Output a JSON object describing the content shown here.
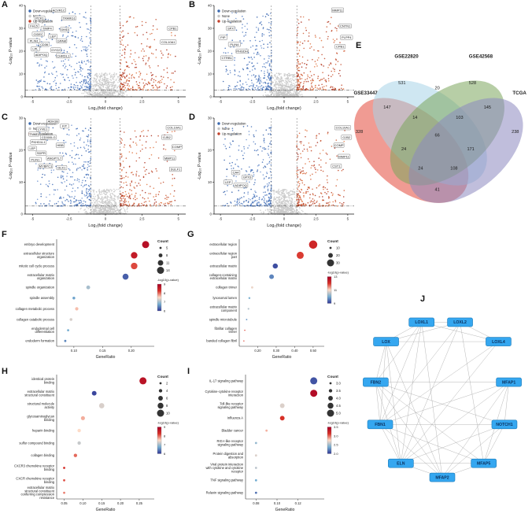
{
  "panels": {
    "a": {
      "letter": "A"
    },
    "b": {
      "letter": "B"
    },
    "c": {
      "letter": "C"
    },
    "d": {
      "letter": "D"
    },
    "e": {
      "letter": "E"
    },
    "f": {
      "letter": "F"
    },
    "g": {
      "letter": "G"
    },
    "h": {
      "letter": "H"
    },
    "i": {
      "letter": "I"
    },
    "j": {
      "letter": "J"
    }
  },
  "axis_labels": {
    "volcano_x": "Log₂(fold change)",
    "volcano_y": "-Log₁₀ P-value",
    "gene_ratio": "GeneRatio"
  },
  "legend_titles": {
    "count": "Count",
    "pvalue": "-log10(p-value)"
  },
  "volcano_legend": [
    "Down-regulation",
    "None",
    "Up-regulation"
  ],
  "colors": {
    "down": "#3a68ae",
    "none": "#c7c7c7",
    "up": "#c2402a",
    "node_fill": "#35a7f0",
    "node_text": "#0b2f5c",
    "edge": "#9a9a9a"
  },
  "chart_data": [
    {
      "panel": "A",
      "type": "scatter",
      "subtype": "volcano",
      "xlabel": "Log₂(fold change)",
      "ylabel": "-Log₁₀ P-value",
      "xlim": [
        -5.5,
        5.5
      ],
      "ylim": [
        0,
        40
      ],
      "xticks": [
        -5,
        -2.5,
        0,
        2.5,
        5
      ],
      "yticks": [
        0,
        10,
        20,
        30,
        40
      ],
      "legend": [
        "Down-regulation",
        "None",
        "Up-regulation"
      ],
      "thresholds": {
        "x": [
          -1,
          1
        ],
        "y": 3
      },
      "genes_down": [
        [
          "ACVR1C",
          -3.2,
          38
        ],
        [
          "PCK1",
          -4.5,
          34.5
        ],
        [
          "TRARG1",
          -2.5,
          34.5
        ],
        [
          "FHL5",
          -4.9,
          31
        ],
        [
          "TIMP4",
          -4.0,
          30
        ],
        [
          "DMD",
          -2.8,
          29.5
        ],
        [
          "CIDEC",
          -4.6,
          27.5
        ],
        [
          "LEP",
          -3.6,
          26.5
        ],
        [
          "PLIN1",
          -4.9,
          24.5
        ],
        [
          "GPAM",
          -3.0,
          24.5
        ],
        [
          "CD36",
          -4.2,
          23
        ],
        [
          "LPL",
          -4.8,
          21
        ],
        [
          "GYG2",
          -3.4,
          20.5
        ],
        [
          "ADIPOQ",
          -4.4,
          18.5
        ],
        [
          "CHRDL1",
          -2.9,
          18
        ]
      ],
      "genes_up": [
        [
          "CPB1",
          4.6,
          30
        ],
        [
          "COL10A1",
          4.3,
          24
        ]
      ]
    },
    {
      "panel": "B",
      "type": "scatter",
      "subtype": "volcano",
      "xlabel": "Log₂(fold change)",
      "ylabel": "-Log₁₀ P-value",
      "xlim": [
        -5.5,
        5.5
      ],
      "ylim": [
        0,
        40
      ],
      "xticks": [
        -5,
        -2.5,
        0,
        2.5,
        5
      ],
      "yticks": [
        0,
        10,
        20,
        30,
        40
      ],
      "legend": [
        "Down-regulation",
        "None",
        "Up-regulation"
      ],
      "thresholds": {
        "x": [
          -1,
          1
        ],
        "y": 3
      },
      "genes_down": [
        [
          "SPX",
          -4.2,
          30
        ],
        [
          "PIP",
          -4.8,
          26
        ],
        [
          "PLIN4",
          -3.9,
          23
        ],
        [
          "PHGDH",
          -3.3,
          20
        ],
        [
          "CTRB1",
          -4.5,
          17
        ]
      ],
      "genes_up": [
        [
          "MMP11",
          4.2,
          38
        ],
        [
          "CNTN1",
          4.8,
          31
        ],
        [
          "PLPP4",
          4.9,
          26
        ],
        [
          "CPB1",
          4.4,
          22
        ]
      ]
    },
    {
      "panel": "C",
      "type": "scatter",
      "subtype": "volcano",
      "xlabel": "Log₂(fold change)",
      "ylabel": "-Log₁₀ P-value",
      "xlim": [
        -5.5,
        5.5
      ],
      "ylim": [
        0,
        30
      ],
      "xticks": [
        -5,
        -2.5,
        0,
        2.5,
        5
      ],
      "yticks": [
        0,
        10,
        20,
        30
      ],
      "legend": [
        "Down-regulation",
        "None",
        "Up-regulation"
      ],
      "thresholds": {
        "x": [
          -1,
          1
        ],
        "y": 2.5
      },
      "genes_down": [
        [
          "ADH1B",
          -3.6,
          29
        ],
        [
          "KIT",
          -2.8,
          27.5
        ],
        [
          "LYVE1",
          -4.3,
          26.5
        ],
        [
          "TNMD",
          -4.9,
          25
        ],
        [
          "CD300LG",
          -3.9,
          24
        ],
        [
          "PKHD1L1",
          -4.6,
          22.5
        ],
        [
          "HBB",
          -3.1,
          21.5
        ],
        [
          "LEP",
          -5.0,
          20.5
        ],
        [
          "SDPR",
          -4.4,
          19
        ],
        [
          "ANGPTL7",
          -3.5,
          17.5
        ],
        [
          "PLIN1",
          -4.8,
          17
        ],
        [
          "MYBPC1",
          -4.1,
          15
        ],
        [
          "DLK1",
          -3.0,
          14.5
        ]
      ],
      "genes_up": [
        [
          "COL10A1",
          4.7,
          27
        ],
        [
          "GJB2",
          4.2,
          24
        ],
        [
          "COMP",
          4.9,
          21
        ],
        [
          "MMP11",
          4.4,
          17.5
        ],
        [
          "SULF1",
          4.8,
          14
        ]
      ]
    },
    {
      "panel": "D",
      "type": "scatter",
      "subtype": "volcano",
      "xlabel": "Log₂(fold change)",
      "ylabel": "-Log₁₀ P-value",
      "xlim": [
        -5.5,
        5.5
      ],
      "ylim": [
        0,
        30
      ],
      "xticks": [
        -5,
        -2.5,
        0,
        2.5,
        5
      ],
      "yticks": [
        0,
        10,
        20,
        30
      ],
      "legend": [
        "Down-regulation",
        "None",
        "Up-regulation"
      ],
      "thresholds": {
        "x": [
          -1,
          1
        ],
        "y": 2.5
      },
      "genes_down": [
        [
          "CA4",
          -3.8,
          13
        ],
        [
          "GPX3",
          -2.9,
          11.5
        ],
        [
          "LEP",
          -4.4,
          10
        ],
        [
          "ADIPOQ",
          -3.4,
          9
        ]
      ],
      "genes_up": [
        [
          "COL10A1",
          4.6,
          27
        ],
        [
          "GJB2",
          4.9,
          24
        ],
        [
          "COMP",
          4.3,
          21.5
        ],
        [
          "MMP11",
          4.7,
          18
        ],
        [
          "CST1",
          4.1,
          15
        ]
      ]
    },
    {
      "panel": "E",
      "type": "venn",
      "sets": [
        {
          "name": "GSE33447",
          "color": "#e3493a"
        },
        {
          "name": "GSE22820",
          "color": "#a8d4e8"
        },
        {
          "name": "GSE42568",
          "color": "#7ca65c"
        },
        {
          "name": "TCGA",
          "color": "#8d89c0"
        }
      ],
      "regions": [
        {
          "sets": "GSE33447",
          "value": 328
        },
        {
          "sets": "GSE22820",
          "value": 531
        },
        {
          "sets": "GSE42568",
          "value": 528
        },
        {
          "sets": "TCGA",
          "value": 238
        },
        {
          "sets": "GSE33447∩GSE22820",
          "value": 147
        },
        {
          "sets": "GSE22820∩GSE42568",
          "value": 20
        },
        {
          "sets": "GSE42568∩TCGA",
          "value": 145
        },
        {
          "sets": "GSE33447∩TCGA",
          "value": 41
        },
        {
          "sets": "GSE33447∩GSE42568",
          "value": 24
        },
        {
          "sets": "GSE22820∩TCGA",
          "value": 171
        },
        {
          "sets": "GSE33447∩GSE22820∩GSE42568",
          "value": 14
        },
        {
          "sets": "GSE22820∩GSE42568∩TCGA",
          "value": 103
        },
        {
          "sets": "GSE33447∩GSE22820∩TCGA",
          "value": 24
        },
        {
          "sets": "GSE33447∩GSE42568∩TCGA",
          "value": 108
        },
        {
          "sets": "GSE33447∩GSE22820∩GSE42568∩TCGA",
          "value": 66
        }
      ]
    },
    {
      "panel": "F",
      "type": "scatter",
      "subtype": "dot",
      "xlabel": "GeneRatio",
      "xlim": [
        0.07,
        0.24
      ],
      "xticks": [
        0.1,
        0.15,
        0.2
      ],
      "count_legend": [
        "5",
        "8",
        "11",
        "14"
      ],
      "colorbar": {
        "min": 6,
        "max": 9.5,
        "ticks": [
          "9",
          "8",
          "7",
          "6"
        ]
      },
      "rows": [
        {
          "label": "embryo development",
          "ratio": 0.225,
          "count": 14,
          "logp": 9.2
        },
        {
          "label": "extracellular structure organization",
          "ratio": 0.205,
          "count": 13,
          "logp": 9.0
        },
        {
          "label": "mitotic cell cycle process",
          "ratio": 0.205,
          "count": 13,
          "logp": 8.5
        },
        {
          "label": "extracellular matrix organization",
          "ratio": 0.19,
          "count": 12,
          "logp": 6.3
        },
        {
          "label": "spindle organization",
          "ratio": 0.125,
          "count": 8,
          "logp": 7.2
        },
        {
          "label": "spindle assembly",
          "ratio": 0.1,
          "count": 6,
          "logp": 6.8
        },
        {
          "label": "collagen metabolic process",
          "ratio": 0.105,
          "count": 7,
          "logp": 7.9
        },
        {
          "label": "collagen catabolic process",
          "ratio": 0.095,
          "count": 6,
          "logp": 7.5
        },
        {
          "label": "endodermal cell differentiation",
          "ratio": 0.09,
          "count": 5,
          "logp": 6.9
        },
        {
          "label": "endoderm formation",
          "ratio": 0.085,
          "count": 5,
          "logp": 6.6
        }
      ]
    },
    {
      "panel": "G",
      "type": "scatter",
      "subtype": "dot",
      "xlabel": "GeneRatio",
      "xlim": [
        0.1,
        0.56
      ],
      "xticks": [
        0.2,
        0.3,
        0.4,
        0.5
      ],
      "count_legend": [
        "10",
        "20",
        "30"
      ],
      "colorbar": {
        "min": 8,
        "max": 14,
        "ticks": [
          "13",
          "11",
          "9"
        ]
      },
      "rows": [
        {
          "label": "extracellular region",
          "ratio": 0.5,
          "count": 35,
          "logp": 12.8
        },
        {
          "label": "extracellular region part",
          "ratio": 0.43,
          "count": 30,
          "logp": 12.4
        },
        {
          "label": "extracellular matrix",
          "ratio": 0.295,
          "count": 22,
          "logp": 8.3
        },
        {
          "label": "collagen-containing extracellular matrix",
          "ratio": 0.275,
          "count": 20,
          "logp": 9.0
        },
        {
          "label": "collagen trimer",
          "ratio": 0.17,
          "count": 10,
          "logp": 10.8
        },
        {
          "label": "lysosomal lumen",
          "ratio": 0.155,
          "count": 9,
          "logp": 9.6
        },
        {
          "label": "extracellular matrix component",
          "ratio": 0.15,
          "count": 8,
          "logp": 10.2
        },
        {
          "label": "spindle microtubule",
          "ratio": 0.14,
          "count": 7,
          "logp": 9.2
        },
        {
          "label": "fibrillar collagen trimer",
          "ratio": 0.13,
          "count": 6,
          "logp": 12.2
        },
        {
          "label": "banded collagen fibril",
          "ratio": 0.125,
          "count": 6,
          "logp": 12.0
        }
      ]
    },
    {
      "panel": "H",
      "type": "scatter",
      "subtype": "dot",
      "xlabel": "GeneRatio",
      "xlim": [
        0.03,
        0.29
      ],
      "xticks": [
        0.05,
        0.1,
        0.15,
        0.2,
        0.25
      ],
      "count_legend": [
        "2",
        "4",
        "6",
        "8",
        "10"
      ],
      "colorbar": {
        "min": 6,
        "max": 9,
        "ticks": [
          "9",
          "8",
          "7",
          "6"
        ]
      },
      "rows": [
        {
          "label": "identical protein binding",
          "ratio": 0.26,
          "count": 10,
          "logp": 8.7
        },
        {
          "label": "extracellular matrix structural constituent",
          "ratio": 0.13,
          "count": 6,
          "logp": 6.1
        },
        {
          "label": "structural molecule activity",
          "ratio": 0.15,
          "count": 7,
          "logp": 7.3
        },
        {
          "label": "glycosaminoglycan binding",
          "ratio": 0.1,
          "count": 5,
          "logp": 7.7
        },
        {
          "label": "heparin binding",
          "ratio": 0.09,
          "count": 4,
          "logp": 7.5
        },
        {
          "label": "sulfur compound binding",
          "ratio": 0.09,
          "count": 4,
          "logp": 7.2
        },
        {
          "label": "collagen binding",
          "ratio": 0.08,
          "count": 4,
          "logp": 8.0
        },
        {
          "label": "CXCR3 chemokine receptor binding",
          "ratio": 0.05,
          "count": 2,
          "logp": 8.3
        },
        {
          "label": "CXCR chemokine receptor binding",
          "ratio": 0.05,
          "count": 2,
          "logp": 8.1
        },
        {
          "label": "extracellular matrix structural constituent conferring compression resistance",
          "ratio": 0.05,
          "count": 2,
          "logp": 7.9
        }
      ]
    },
    {
      "panel": "I",
      "type": "scatter",
      "subtype": "dot",
      "xlabel": "GeneRatio",
      "xlim": [
        0.07,
        0.145
      ],
      "xticks": [
        0.08,
        0.1,
        0.12
      ],
      "count_legend": [
        "3.0",
        "3.5",
        "4.0",
        "4.5",
        "5.0"
      ],
      "colorbar": {
        "min": 2,
        "max": 3.6,
        "ticks": [
          "3.5",
          "3.0",
          "2.5",
          "2.0"
        ]
      },
      "rows": [
        {
          "label": "IL-17 signaling pathway",
          "ratio": 0.135,
          "count": 5.0,
          "logp": 2.1
        },
        {
          "label": "Cytokine-cytokine receptor interaction",
          "ratio": 0.135,
          "count": 5.0,
          "logp": 3.5
        },
        {
          "label": "Toll-like receptor signaling pathway",
          "ratio": 0.105,
          "count": 4.0,
          "logp": 2.7
        },
        {
          "label": "Influenza A",
          "ratio": 0.105,
          "count": 4.0,
          "logp": 3.2
        },
        {
          "label": "Bladder cancer",
          "ratio": 0.09,
          "count": 3.0,
          "logp": 2.9
        },
        {
          "label": "RIG-I-like receptor signaling pathway",
          "ratio": 0.08,
          "count": 3.0,
          "logp": 2.5
        },
        {
          "label": "Protein digestion and absorption",
          "ratio": 0.08,
          "count": 3.0,
          "logp": 2.7
        },
        {
          "label": "Viral protein interaction with cytokine and cytokine receptor",
          "ratio": 0.08,
          "count": 3.0,
          "logp": 2.6
        },
        {
          "label": "TNF signaling pathway",
          "ratio": 0.08,
          "count": 3.0,
          "logp": 2.4
        },
        {
          "label": "Relaxin signaling pathway",
          "ratio": 0.08,
          "count": 3.0,
          "logp": 2.2
        }
      ]
    },
    {
      "panel": "J",
      "type": "network",
      "nodes": [
        "LOXL1",
        "LOXL2",
        "LOX",
        "LOXL4",
        "FBN2",
        "MFAP1",
        "FBN1",
        "NOTCH1",
        "ELN",
        "MFAP5",
        "MFAP2"
      ],
      "edges": [
        [
          "LOX",
          "LOXL1"
        ],
        [
          "LOX",
          "LOXL2"
        ],
        [
          "LOX",
          "LOXL4"
        ],
        [
          "LOXL1",
          "LOXL2"
        ],
        [
          "LOXL1",
          "LOXL4"
        ],
        [
          "LOXL2",
          "LOXL4"
        ],
        [
          "FBN1",
          "FBN2"
        ],
        [
          "FBN1",
          "ELN"
        ],
        [
          "FBN2",
          "ELN"
        ],
        [
          "FBN1",
          "MFAP2"
        ],
        [
          "FBN1",
          "MFAP5"
        ],
        [
          "FBN2",
          "MFAP2"
        ],
        [
          "FBN2",
          "MFAP5"
        ],
        [
          "FBN2",
          "MFAP1"
        ],
        [
          "FBN1",
          "MFAP1"
        ],
        [
          "ELN",
          "MFAP1"
        ],
        [
          "ELN",
          "MFAP2"
        ],
        [
          "ELN",
          "MFAP5"
        ],
        [
          "MFAP1",
          "MFAP2"
        ],
        [
          "MFAP1",
          "MFAP5"
        ],
        [
          "MFAP2",
          "MFAP5"
        ],
        [
          "NOTCH1",
          "MFAP1"
        ],
        [
          "NOTCH1",
          "MFAP2"
        ],
        [
          "NOTCH1",
          "MFAP5"
        ],
        [
          "NOTCH1",
          "FBN1"
        ],
        [
          "NOTCH1",
          "FBN2"
        ],
        [
          "NOTCH1",
          "ELN"
        ],
        [
          "LOX",
          "ELN"
        ],
        [
          "LOX",
          "FBN1"
        ],
        [
          "LOX",
          "FBN2"
        ],
        [
          "LOXL1",
          "ELN"
        ],
        [
          "LOXL1",
          "FBN1"
        ],
        [
          "LOXL1",
          "FBN2"
        ],
        [
          "LOXL2",
          "ELN"
        ],
        [
          "LOXL2",
          "FBN1"
        ],
        [
          "LOXL4",
          "ELN"
        ],
        [
          "LOXL4",
          "FBN1"
        ],
        [
          "LOXL1",
          "MFAP2"
        ],
        [
          "LOXL2",
          "MFAP5"
        ],
        [
          "LOX",
          "MFAP2"
        ]
      ]
    }
  ]
}
